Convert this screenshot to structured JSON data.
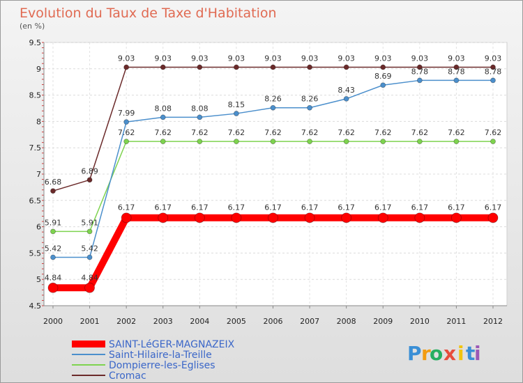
{
  "chart_data": {
    "type": "line",
    "title": "Evolution du Taux de Taxe d'Habitation",
    "subtitle": "(en %)",
    "xlabel": "",
    "ylabel": "",
    "ylim": [
      4.5,
      9.5
    ],
    "yticks": [
      "4.5",
      "5",
      "5.5",
      "6",
      "6.5",
      "7",
      "7.5",
      "8",
      "8.5",
      "9",
      "9.5"
    ],
    "categories": [
      "2000",
      "2001",
      "2002",
      "2003",
      "2004",
      "2005",
      "2006",
      "2007",
      "2008",
      "2009",
      "2010",
      "2011",
      "2012"
    ],
    "series": [
      {
        "name": "SAINT-LéGER-MAGNAZEIX",
        "color": "#ff0000",
        "values": [
          4.84,
          4.84,
          6.17,
          6.17,
          6.17,
          6.17,
          6.17,
          6.17,
          6.17,
          6.17,
          6.17,
          6.17,
          6.17
        ],
        "labels": [
          "4.84",
          "4.84",
          "6.17",
          "6.17",
          "6.17",
          "6.17",
          "6.17",
          "6.17",
          "6.17",
          "6.17",
          "6.17",
          "6.17",
          "6.17"
        ]
      },
      {
        "name": "Saint-Hilaire-la-Treille",
        "color": "#4b8fcc",
        "values": [
          5.42,
          5.42,
          7.99,
          8.08,
          8.08,
          8.15,
          8.26,
          8.26,
          8.43,
          8.69,
          8.78,
          8.78,
          8.78
        ],
        "labels": [
          "5.42",
          "5.42",
          "7.99",
          "8.08",
          "8.08",
          "8.15",
          "8.26",
          "8.26",
          "8.43",
          "8.69",
          "8.78",
          "8.78",
          "8.78"
        ]
      },
      {
        "name": "Dompierre-les-Eglises",
        "color": "#7ed34f",
        "values": [
          5.91,
          5.91,
          7.62,
          7.62,
          7.62,
          7.62,
          7.62,
          7.62,
          7.62,
          7.62,
          7.62,
          7.62,
          7.62
        ],
        "labels": [
          "5.91",
          "5.91",
          "7.62",
          "7.62",
          "7.62",
          "7.62",
          "7.62",
          "7.62",
          "7.62",
          "7.62",
          "7.62",
          "7.62",
          "7.62"
        ]
      },
      {
        "name": "Cromac",
        "color": "#6b2a2a",
        "values": [
          6.68,
          6.89,
          9.03,
          9.03,
          9.03,
          9.03,
          9.03,
          9.03,
          9.03,
          9.03,
          9.03,
          9.03,
          9.03
        ],
        "labels": [
          "6.68",
          "6.89",
          "9.03",
          "9.03",
          "9.03",
          "9.03",
          "9.03",
          "9.03",
          "9.03",
          "9.03",
          "9.03",
          "9.03",
          "9.03"
        ]
      }
    ],
    "legend_position": "bottom-left"
  },
  "branding": {
    "letters": [
      "P",
      "r",
      "o",
      "x",
      "i",
      "t",
      "i"
    ],
    "colors": [
      "#3a8fd6",
      "#f39c12",
      "#27ae60",
      "#e74c3c",
      "#f1c40f",
      "#3a8fd6",
      "#9b59b6"
    ]
  }
}
